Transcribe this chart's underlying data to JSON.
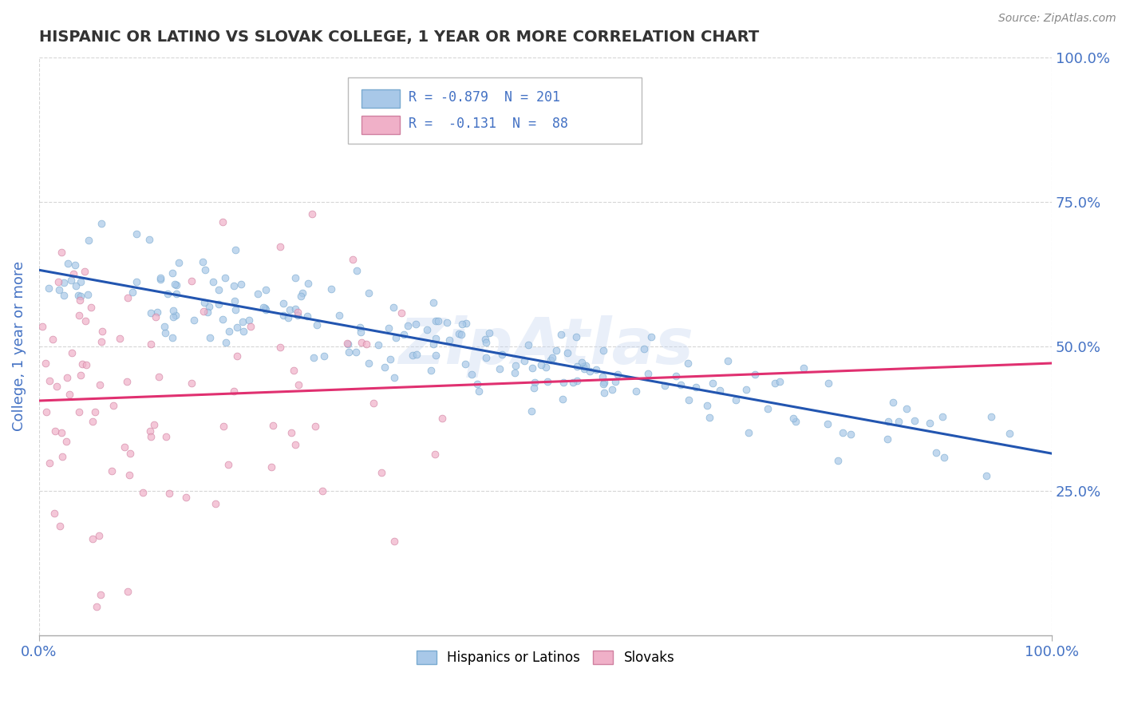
{
  "title": "HISPANIC OR LATINO VS SLOVAK COLLEGE, 1 YEAR OR MORE CORRELATION CHART",
  "source_text": "Source: ZipAtlas.com",
  "ylabel": "College, 1 year or more",
  "xmin": 0.0,
  "xmax": 1.0,
  "ymin": 0.0,
  "ymax": 1.0,
  "yticks": [
    0.25,
    0.5,
    0.75,
    1.0
  ],
  "ytick_labels": [
    "25.0%",
    "50.0%",
    "75.0%",
    "100.0%"
  ],
  "xtick_labels": [
    "0.0%",
    "100.0%"
  ],
  "series1_color": "#a8c8e8",
  "series1_edge": "#7aaad0",
  "series2_color": "#f0b0c8",
  "series2_edge": "#d080a0",
  "line1_color": "#2255b0",
  "line2_color": "#e03070",
  "watermark": "ZipAtlas",
  "background_color": "#ffffff",
  "grid_color": "#cccccc",
  "title_color": "#333333",
  "axis_label_color": "#4472c4",
  "n1": 201,
  "n2": 88,
  "r1": -0.879,
  "r2": -0.131,
  "scatter_alpha": 0.7,
  "scatter_size": 40,
  "legend_text1": "R = -0.879  N = 201",
  "legend_text2": "R =  -0.131  N =  88"
}
